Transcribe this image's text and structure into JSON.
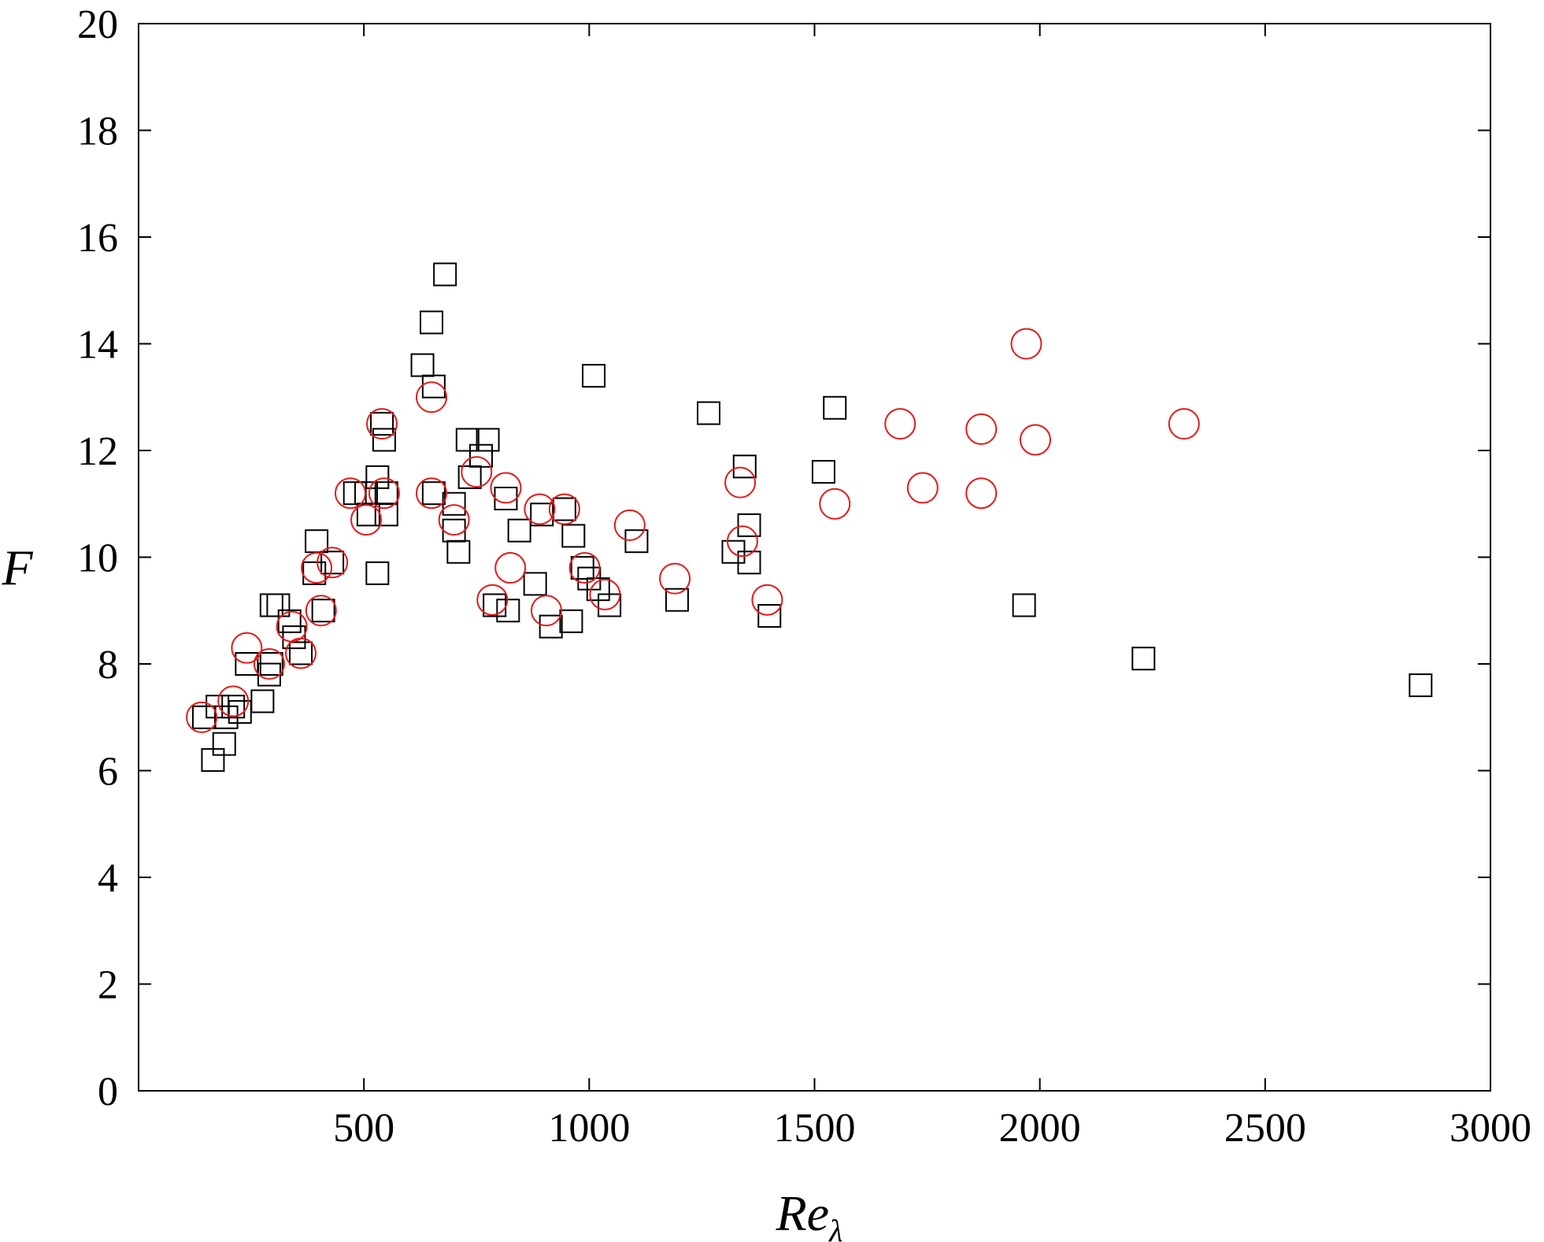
{
  "chart_data": {
    "type": "scatter",
    "xlabel": "Re",
    "xlabel_subscript": "λ",
    "ylabel": "F",
    "xlim": [
      0,
      3000
    ],
    "ylim": [
      0,
      20
    ],
    "xticks": [
      500,
      1000,
      1500,
      2000,
      2500,
      3000
    ],
    "yticks": [
      0,
      2,
      4,
      6,
      8,
      10,
      12,
      14,
      16,
      18,
      20
    ],
    "grid": false,
    "series": [
      {
        "marker": "square",
        "color": "#000000",
        "points": [
          [
            145,
            7.0
          ],
          [
            165,
            6.2
          ],
          [
            175,
            7.2
          ],
          [
            190,
            6.5
          ],
          [
            195,
            7.0
          ],
          [
            210,
            7.2
          ],
          [
            225,
            7.1
          ],
          [
            240,
            8.0
          ],
          [
            275,
            7.3
          ],
          [
            290,
            7.8
          ],
          [
            295,
            8.0
          ],
          [
            295,
            9.1
          ],
          [
            310,
            9.1
          ],
          [
            335,
            8.8
          ],
          [
            345,
            8.5
          ],
          [
            360,
            8.2
          ],
          [
            390,
            9.7
          ],
          [
            395,
            10.3
          ],
          [
            410,
            9.0
          ],
          [
            430,
            9.9
          ],
          [
            480,
            11.2
          ],
          [
            505,
            11.2
          ],
          [
            510,
            10.8
          ],
          [
            530,
            11.5
          ],
          [
            530,
            9.7
          ],
          [
            540,
            12.5
          ],
          [
            545,
            12.2
          ],
          [
            550,
            10.8
          ],
          [
            550,
            11.2
          ],
          [
            630,
            13.6
          ],
          [
            650,
            14.4
          ],
          [
            655,
            13.2
          ],
          [
            655,
            11.2
          ],
          [
            680,
            15.3
          ],
          [
            700,
            11.0
          ],
          [
            700,
            10.5
          ],
          [
            710,
            10.1
          ],
          [
            730,
            12.2
          ],
          [
            735,
            11.5
          ],
          [
            760,
            11.9
          ],
          [
            775,
            12.2
          ],
          [
            790,
            9.1
          ],
          [
            815,
            11.1
          ],
          [
            820,
            9.0
          ],
          [
            845,
            10.5
          ],
          [
            880,
            9.5
          ],
          [
            895,
            10.8
          ],
          [
            915,
            8.7
          ],
          [
            945,
            10.9
          ],
          [
            960,
            8.8
          ],
          [
            965,
            10.4
          ],
          [
            985,
            9.8
          ],
          [
            1000,
            9.6
          ],
          [
            1010,
            13.4
          ],
          [
            1020,
            9.4
          ],
          [
            1045,
            9.1
          ],
          [
            1105,
            10.3
          ],
          [
            1195,
            9.2
          ],
          [
            1265,
            12.7
          ],
          [
            1320,
            10.1
          ],
          [
            1345,
            11.7
          ],
          [
            1355,
            9.9
          ],
          [
            1355,
            10.6
          ],
          [
            1400,
            8.9
          ],
          [
            1520,
            11.6
          ],
          [
            1545,
            12.8
          ],
          [
            1965,
            9.1
          ],
          [
            2230,
            8.1
          ],
          [
            2845,
            7.6
          ]
        ]
      },
      {
        "marker": "circle",
        "color": "#e41a1c",
        "points": [
          [
            140,
            7.0
          ],
          [
            210,
            7.3
          ],
          [
            240,
            8.3
          ],
          [
            290,
            8.0
          ],
          [
            340,
            8.7
          ],
          [
            360,
            8.2
          ],
          [
            395,
            9.8
          ],
          [
            405,
            9.0
          ],
          [
            430,
            9.9
          ],
          [
            470,
            11.2
          ],
          [
            505,
            10.7
          ],
          [
            540,
            12.5
          ],
          [
            545,
            11.2
          ],
          [
            650,
            13.0
          ],
          [
            650,
            11.2
          ],
          [
            700,
            10.7
          ],
          [
            750,
            11.6
          ],
          [
            785,
            9.2
          ],
          [
            815,
            11.3
          ],
          [
            825,
            9.8
          ],
          [
            890,
            10.9
          ],
          [
            905,
            9.0
          ],
          [
            945,
            10.9
          ],
          [
            990,
            9.8
          ],
          [
            1035,
            9.3
          ],
          [
            1090,
            10.6
          ],
          [
            1190,
            9.6
          ],
          [
            1335,
            11.4
          ],
          [
            1340,
            10.3
          ],
          [
            1395,
            9.2
          ],
          [
            1545,
            11.0
          ],
          [
            1690,
            12.5
          ],
          [
            1740,
            11.3
          ],
          [
            1870,
            12.4
          ],
          [
            1870,
            11.2
          ],
          [
            1970,
            14.0
          ],
          [
            1990,
            12.2
          ],
          [
            2320,
            12.5
          ]
        ]
      }
    ]
  }
}
